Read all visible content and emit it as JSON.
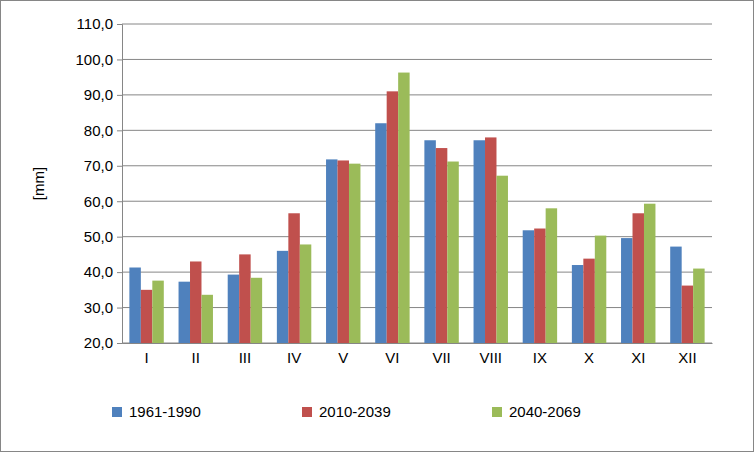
{
  "chart_data": {
    "type": "bar",
    "y_label": "[mm]",
    "categories": [
      "I",
      "II",
      "III",
      "IV",
      "V",
      "VI",
      "VII",
      "VIII",
      "IX",
      "X",
      "XI",
      "XII"
    ],
    "series": [
      {
        "name": "1961-1990",
        "color": "#4f81bd",
        "values": [
          41.3,
          37.3,
          39.3,
          46.0,
          71.8,
          82.0,
          77.2,
          77.2,
          51.8,
          42.0,
          49.6,
          47.2
        ]
      },
      {
        "name": "2010-2039",
        "color": "#c0504d",
        "values": [
          35.0,
          43.0,
          45.0,
          56.6,
          71.5,
          91.0,
          75.0,
          78.0,
          52.3,
          43.8,
          56.6,
          36.2
        ]
      },
      {
        "name": "2040-2069",
        "color": "#9bbb59",
        "values": [
          37.6,
          33.6,
          38.4,
          47.8,
          70.6,
          96.3,
          71.2,
          67.2,
          58.0,
          50.3,
          59.3,
          41.0
        ]
      }
    ],
    "ylim": [
      20,
      110
    ],
    "yticks": [
      {
        "value": 20,
        "label": "20,0"
      },
      {
        "value": 30,
        "label": "30,0"
      },
      {
        "value": 40,
        "label": "40,0"
      },
      {
        "value": 50,
        "label": "50,0"
      },
      {
        "value": 60,
        "label": "60,0"
      },
      {
        "value": 70,
        "label": "70,0"
      },
      {
        "value": 80,
        "label": "80,0"
      },
      {
        "value": 90,
        "label": "90,0"
      },
      {
        "value": 100,
        "label": "100,0"
      },
      {
        "value": 110,
        "label": "110,0"
      }
    ],
    "grid": true,
    "legend": "bottom"
  }
}
